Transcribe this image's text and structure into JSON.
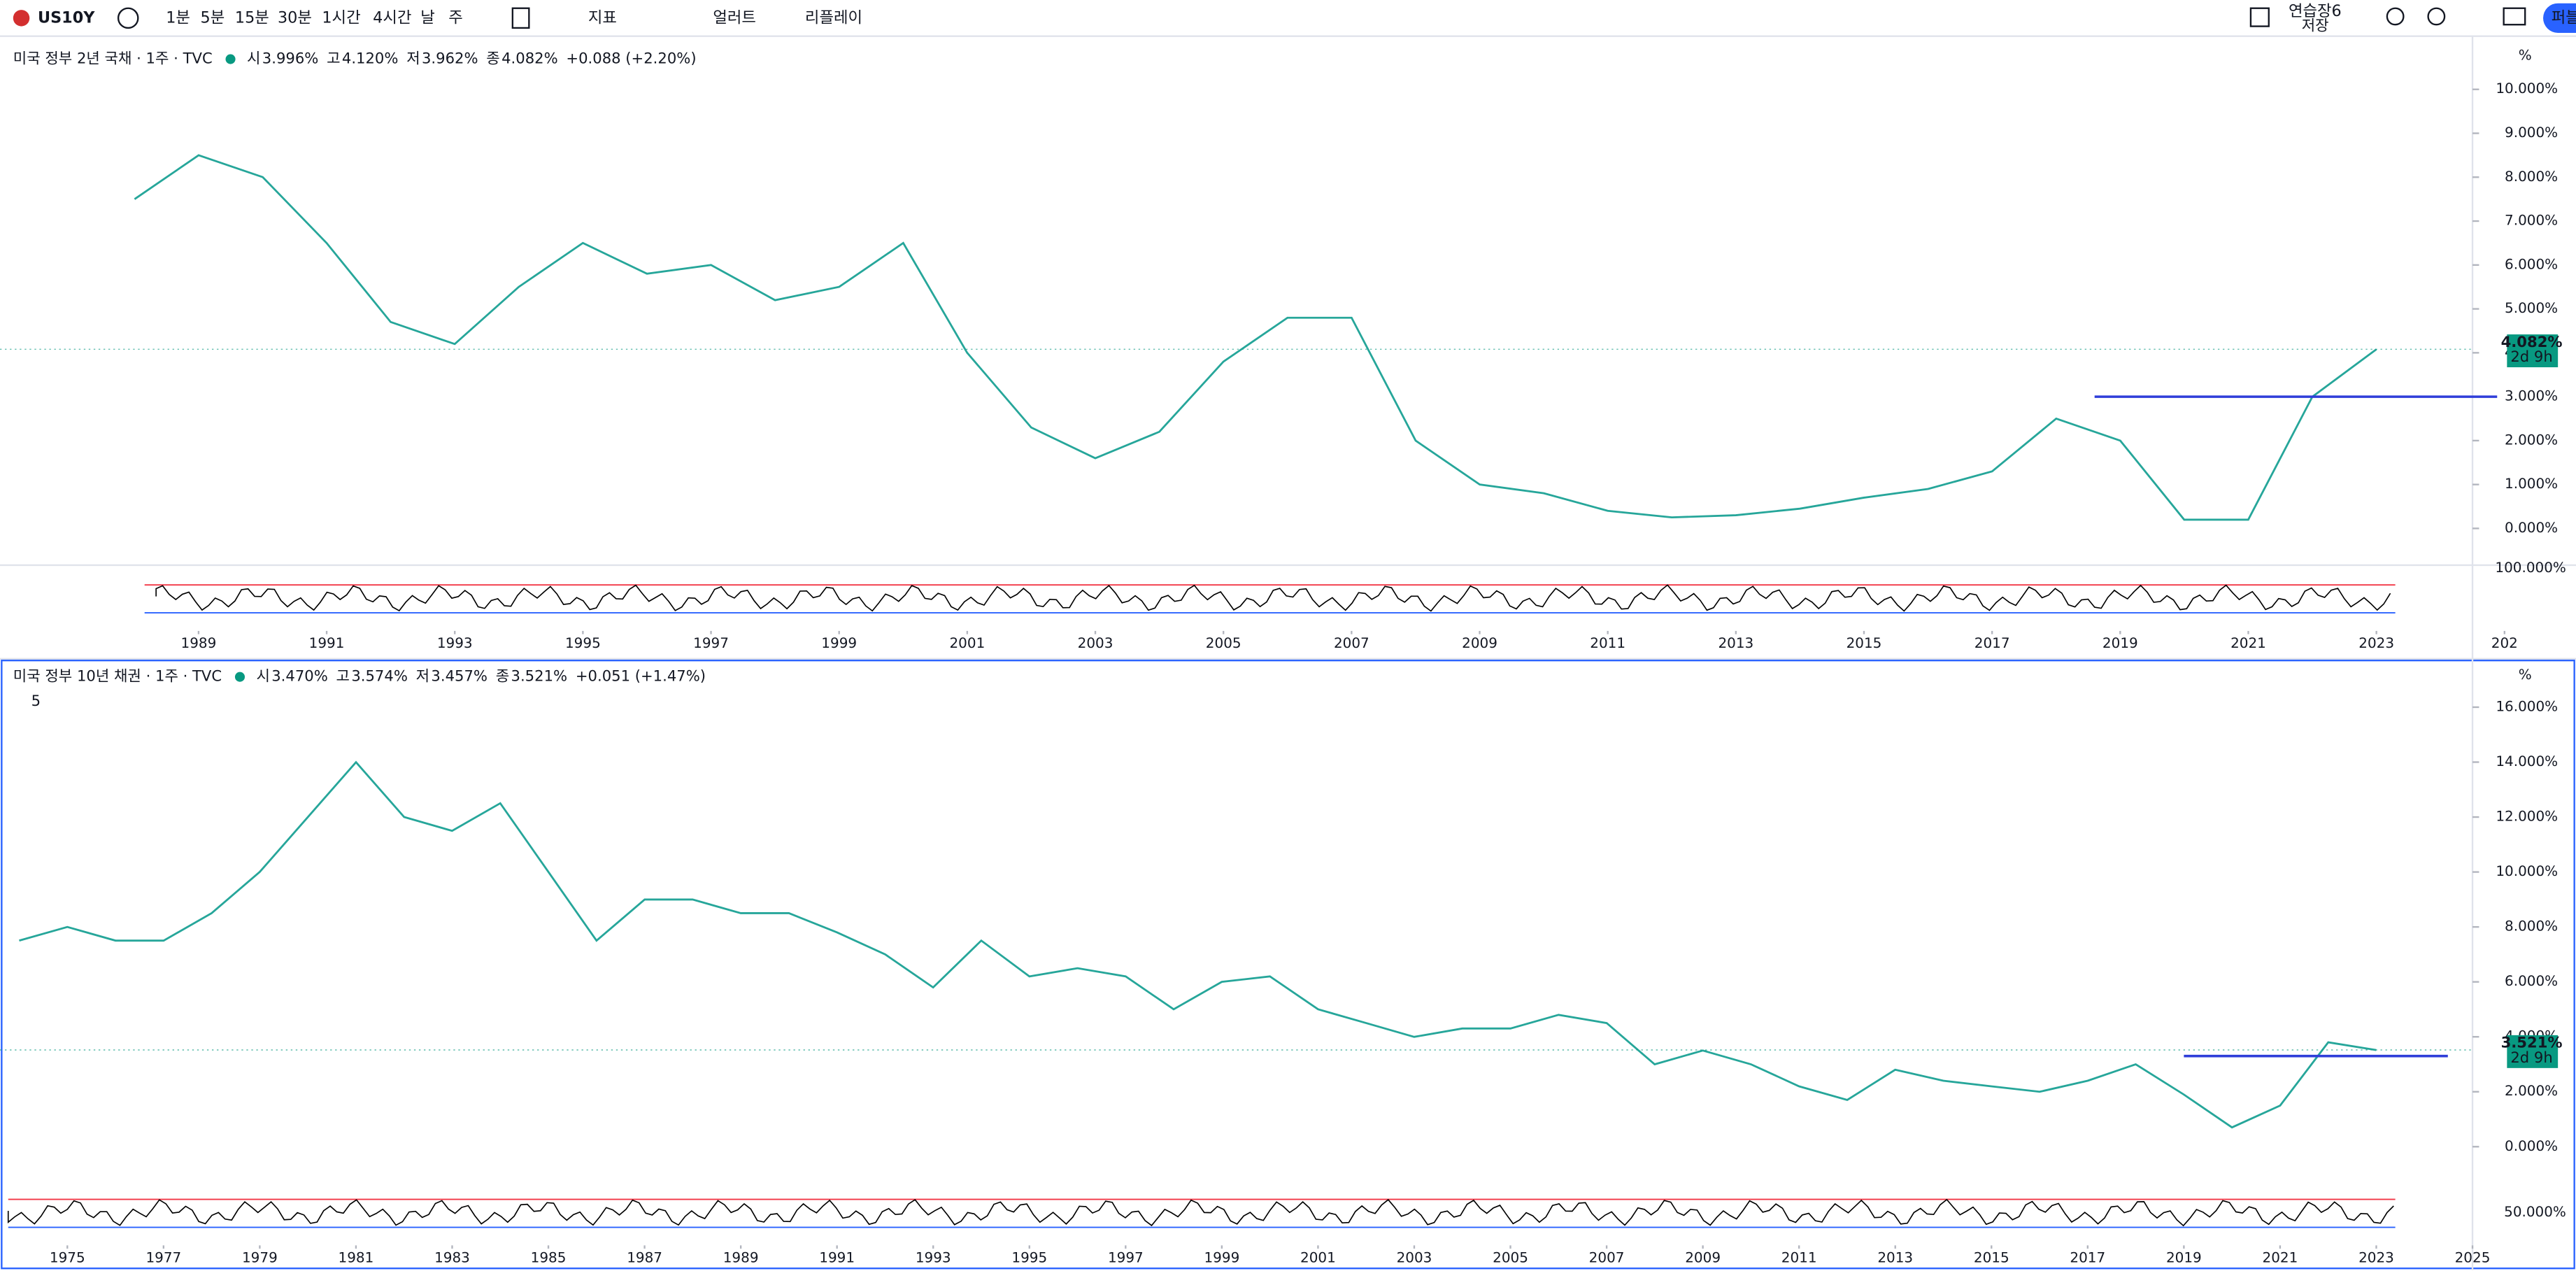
{
  "toolbar": {
    "symbol": "US10Y",
    "intervals": [
      "1분",
      "5분",
      "15분",
      "30분",
      "1시간",
      "4시간",
      "날",
      "주"
    ],
    "indicators": "지표",
    "alert": "얼러트",
    "replay": "리플레이",
    "layout_name": "연습장6",
    "save": "저장",
    "publish": "퍼블"
  },
  "chart_data": [
    {
      "type": "line",
      "title": "미국 정부 2년 국채 · 1주 · TVC",
      "o_label": "시",
      "o": "3.996%",
      "h_label": "고",
      "h": "4.120%",
      "l_label": "저",
      "l": "3.962%",
      "c_label": "종",
      "c": "4.082%",
      "change": "+0.088 (+2.20%)",
      "unit": "%",
      "color": "#26a69a",
      "x": [
        1988,
        1989,
        1990,
        1991,
        1992,
        1993,
        1994,
        1995,
        1996,
        1997,
        1998,
        1999,
        2000,
        2001,
        2002,
        2003,
        2004,
        2005,
        2006,
        2007,
        2008,
        2009,
        2010,
        2011,
        2012,
        2013,
        2014,
        2015,
        2016,
        2017,
        2018,
        2019,
        2020,
        2021,
        2022,
        2023
      ],
      "values": [
        7.5,
        8.5,
        8.0,
        6.5,
        4.7,
        4.2,
        5.5,
        6.5,
        5.8,
        6.0,
        5.2,
        5.5,
        6.5,
        4.0,
        2.3,
        1.6,
        2.2,
        3.8,
        4.8,
        4.8,
        2.0,
        1.0,
        0.8,
        0.4,
        0.25,
        0.3,
        0.45,
        0.7,
        0.9,
        1.3,
        2.5,
        2.0,
        0.2,
        0.2,
        3.0,
        4.08
      ],
      "level_line": {
        "value": 3.0,
        "from": 2018.6,
        "color": "#2f3ed9"
      },
      "price_tag": {
        "value": 4.082,
        "label": "4.082%",
        "countdown": "2d 9h"
      },
      "oscillator_label": "100.000%",
      "xlim": [
        1985.9,
        2024.5
      ],
      "ylim": [
        -0.8,
        11.1
      ],
      "yticks": [
        {
          "value": 0,
          "label": "0.000%"
        },
        {
          "value": 1,
          "label": "1.000%"
        },
        {
          "value": 2,
          "label": "2.000%"
        },
        {
          "value": 3,
          "label": "3.000%"
        },
        {
          "value": 4,
          "label": "4.000%"
        },
        {
          "value": 5,
          "label": "5.000%"
        },
        {
          "value": 6,
          "label": "6.000%"
        },
        {
          "value": 7,
          "label": "7.000%"
        },
        {
          "value": 8,
          "label": "8.000%"
        },
        {
          "value": 9,
          "label": "9.000%"
        },
        {
          "value": 10,
          "label": "10.000%"
        }
      ],
      "xticks": [
        1989,
        1991,
        1993,
        1995,
        1997,
        1999,
        2001,
        2003,
        2005,
        2007,
        2009,
        2011,
        2013,
        2015,
        2017,
        2019,
        2021,
        2023,
        {
          "value": 2025,
          "label": "202"
        }
      ]
    },
    {
      "type": "line",
      "title": "미국 정부 10년 채권 · 1주 · TVC",
      "o_label": "시",
      "o": "3.470%",
      "h_label": "고",
      "h": "3.574%",
      "l_label": "저",
      "l": "3.457%",
      "c_label": "종",
      "c": "3.521%",
      "change": "+0.051 (+1.47%)",
      "unit": "%",
      "color": "#26a69a",
      "collapse": "5",
      "x": [
        1974,
        1975,
        1976,
        1977,
        1978,
        1979,
        1980,
        1981,
        1982,
        1983,
        1984,
        1985,
        1986,
        1987,
        1988,
        1989,
        1990,
        1991,
        1992,
        1993,
        1994,
        1995,
        1996,
        1997,
        1998,
        1999,
        2000,
        2001,
        2002,
        2003,
        2004,
        2005,
        2006,
        2007,
        2008,
        2009,
        2010,
        2011,
        2012,
        2013,
        2014,
        2015,
        2016,
        2017,
        2018,
        2019,
        2020,
        2021,
        2022,
        2023
      ],
      "values": [
        7.5,
        8.0,
        7.5,
        7.5,
        8.5,
        10,
        12,
        14,
        12,
        11.5,
        12.5,
        10,
        7.5,
        9,
        9,
        8.5,
        8.5,
        7.8,
        7,
        5.8,
        7.5,
        6.2,
        6.5,
        6.2,
        5,
        6,
        6.2,
        5,
        4.5,
        4,
        4.3,
        4.3,
        4.8,
        4.5,
        3,
        3.5,
        3,
        2.2,
        1.7,
        2.8,
        2.4,
        2.2,
        2,
        2.4,
        3,
        1.9,
        0.7,
        1.5,
        3.8,
        3.52
      ],
      "level_line": {
        "value": 3.3,
        "from": 2019,
        "color": "#2f3ed9"
      },
      "price_tag": {
        "value": 3.521,
        "label": "3.521%",
        "countdown": "2d 9h"
      },
      "oscillator_label": "50.000%",
      "xlim": [
        1973.6,
        2025
      ],
      "ylim": [
        -1.2,
        17.7
      ],
      "yticks": [
        {
          "value": 0,
          "label": "0.000%"
        },
        {
          "value": 2,
          "label": "2.000%"
        },
        {
          "value": 4,
          "label": "4.000%"
        },
        {
          "value": 6,
          "label": "6.000%"
        },
        {
          "value": 8,
          "label": "8.000%"
        },
        {
          "value": 10,
          "label": "10.000%"
        },
        {
          "value": 12,
          "label": "12.000%"
        },
        {
          "value": 14,
          "label": "14.000%"
        },
        {
          "value": 16,
          "label": "16.000%"
        }
      ],
      "xticks": [
        1975,
        1977,
        1979,
        1981,
        1983,
        1985,
        1987,
        1989,
        1991,
        1993,
        1995,
        1997,
        1999,
        2001,
        2003,
        2005,
        2007,
        2009,
        2011,
        2013,
        2015,
        2017,
        2019,
        2021,
        2023,
        2025
      ]
    }
  ]
}
